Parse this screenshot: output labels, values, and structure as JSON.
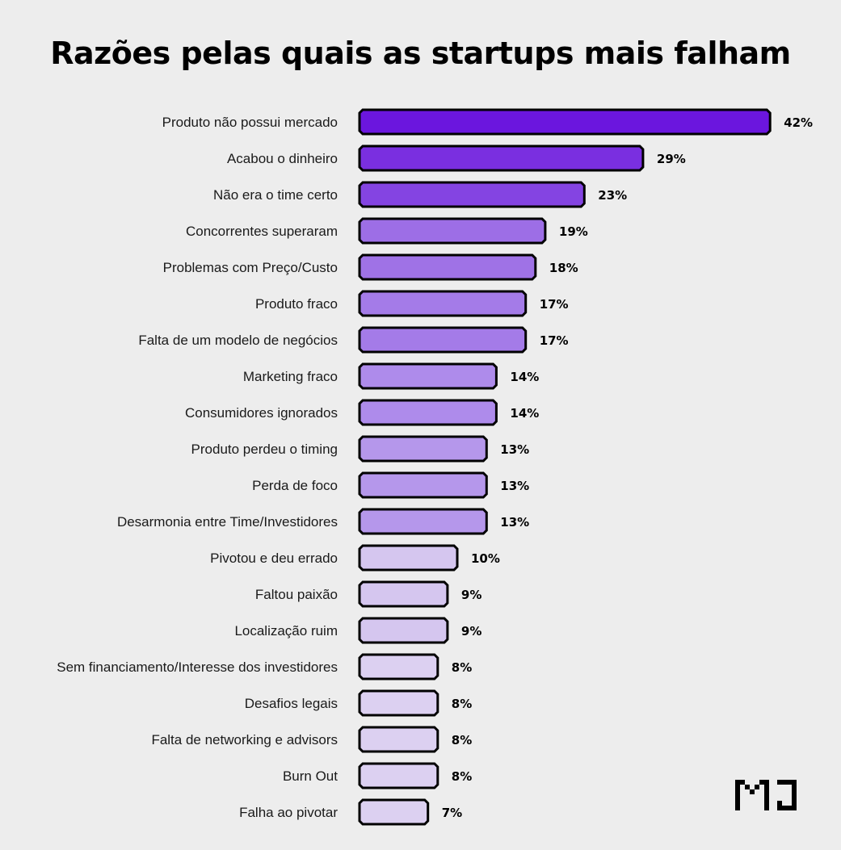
{
  "chart_data": {
    "type": "bar",
    "orientation": "horizontal",
    "title": "Razões pelas quais as startups mais falham",
    "categories": [
      "Produto não possui mercado",
      "Acabou o dinheiro",
      "Não era o time certo",
      "Concorrentes superaram",
      "Problemas com Preço/Custo",
      "Produto fraco",
      "Falta de um modelo de negócios",
      "Marketing fraco",
      "Consumidores ignorados",
      "Produto perdeu o timing",
      "Perda de foco",
      "Desarmonia entre Time/Investidores",
      "Pivotou e deu errado",
      "Faltou paixão",
      "Localização ruim",
      "Sem financiamento/Interesse dos investidores",
      "Desafios legais",
      "Falta de networking e advisors",
      "Burn Out",
      "Falha ao pivotar"
    ],
    "values": [
      42,
      29,
      23,
      19,
      18,
      17,
      17,
      14,
      14,
      13,
      13,
      13,
      10,
      9,
      9,
      8,
      8,
      8,
      8,
      7
    ],
    "value_labels": [
      "42%",
      "29%",
      "23%",
      "19%",
      "18%",
      "17%",
      "17%",
      "14%",
      "14%",
      "13%",
      "13%",
      "13%",
      "10%",
      "9%",
      "9%",
      "8%",
      "8%",
      "8%",
      "8%",
      "7%"
    ],
    "bar_colors": [
      "#6b16de",
      "#7a2fe0",
      "#8444e2",
      "#9d6ee6",
      "#9f72e6",
      "#a47be8",
      "#a47be8",
      "#ae8beb",
      "#ae8beb",
      "#b597eb",
      "#b597eb",
      "#b597eb",
      "#d5c6ef",
      "#d5c6ef",
      "#d5c6ef",
      "#dcd0f1",
      "#dcd0f1",
      "#dcd0f1",
      "#dcd0f1",
      "#dcd0f1"
    ],
    "outline_color": "#000000",
    "background": "#ededed",
    "grid": false,
    "legend": "none"
  },
  "logo": {
    "text": "MJ"
  }
}
